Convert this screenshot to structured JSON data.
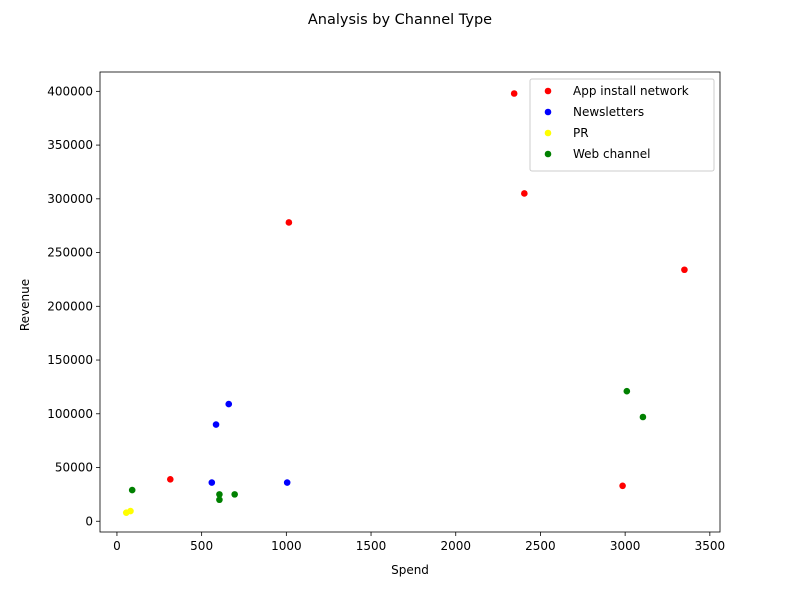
{
  "chart_data": {
    "type": "scatter",
    "title": "Analysis by Channel Type",
    "xlabel": "Spend",
    "ylabel": "Revenue",
    "xlim": [
      -100,
      3560
    ],
    "ylim": [
      -10000,
      418000
    ],
    "xticks": [
      0,
      500,
      1000,
      1500,
      2000,
      2500,
      3000,
      3500
    ],
    "yticks": [
      0,
      50000,
      100000,
      150000,
      200000,
      250000,
      300000,
      350000,
      400000
    ],
    "grid": false,
    "legend_position": "upper right",
    "series": [
      {
        "name": "App install network",
        "color": "#ff0000",
        "points": [
          {
            "x": 2345,
            "y": 398000
          },
          {
            "x": 2405,
            "y": 305000
          },
          {
            "x": 1015,
            "y": 278000
          },
          {
            "x": 3350,
            "y": 234000
          },
          {
            "x": 315,
            "y": 39000
          },
          {
            "x": 2985,
            "y": 33000
          }
        ]
      },
      {
        "name": "Newsletters",
        "color": "#0000ff",
        "points": [
          {
            "x": 660,
            "y": 109000
          },
          {
            "x": 585,
            "y": 90000
          },
          {
            "x": 560,
            "y": 36000
          },
          {
            "x": 1005,
            "y": 36000
          }
        ]
      },
      {
        "name": "PR",
        "color": "#ffff00",
        "points": [
          {
            "x": 55,
            "y": 8000
          },
          {
            "x": 80,
            "y": 9500
          }
        ]
      },
      {
        "name": "Web channel",
        "color": "#008000",
        "points": [
          {
            "x": 3010,
            "y": 121000
          },
          {
            "x": 3105,
            "y": 97000
          },
          {
            "x": 90,
            "y": 29000
          },
          {
            "x": 605,
            "y": 25000
          },
          {
            "x": 695,
            "y": 25000
          },
          {
            "x": 605,
            "y": 20000
          }
        ]
      }
    ]
  }
}
